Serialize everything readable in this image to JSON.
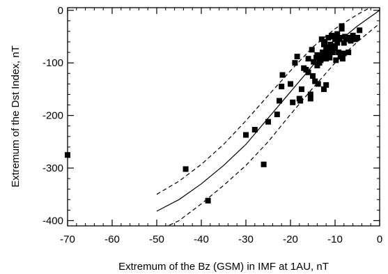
{
  "chart_data": {
    "type": "scatter",
    "xlabel": "Extremum of the Bz (GSM) in IMF at 1AU, nT",
    "ylabel": "Extremum of the Dst Index, nT",
    "xlim": [
      -70,
      0
    ],
    "ylim": [
      -410,
      5
    ],
    "x_ticks": [
      -70,
      -60,
      -50,
      -40,
      -30,
      -20,
      -10,
      0
    ],
    "y_ticks": [
      0,
      -100,
      -200,
      -300,
      -400
    ],
    "x_tick_labels": [
      "-70",
      "-60",
      "-50",
      "-40",
      "-30",
      "-20",
      "-10",
      "0"
    ],
    "y_tick_labels": [
      "0",
      "-100",
      "-200",
      "-300",
      "-400"
    ],
    "grid": false,
    "legend": "none",
    "points": {
      "x": [
        -70,
        -43.5,
        -38.5,
        -30,
        -28,
        -26,
        -25,
        -23,
        -22.5,
        -22,
        -21.8,
        -20,
        -19.5,
        -19,
        -18.5,
        -18,
        -17.8,
        -17.5,
        -17,
        -16.5,
        -16,
        -16,
        -15.5,
        -15.2,
        -15,
        -14.8,
        -14.5,
        -14.2,
        -14,
        -14,
        -13.5,
        -13.2,
        -13,
        -13,
        -12.8,
        -12.5,
        -12.5,
        -12.3,
        -12,
        -12,
        -11.8,
        -11.5,
        -11.5,
        -11.2,
        -11,
        -11,
        -10.8,
        -10.5,
        -10.5,
        -10.2,
        -10,
        -10,
        -9.8,
        -9.5,
        -9.5,
        -9.2,
        -9,
        -9,
        -8.8,
        -8.5,
        -8.5,
        -8.3,
        -8,
        -8,
        -7.8,
        -7.5,
        -7,
        -6.8,
        -6.5,
        -6,
        -5.5,
        -5,
        -4.5,
        -12.5,
        -13.8,
        -12,
        -15.5
      ],
      "y": [
        -275,
        -302,
        -362,
        -237,
        -227,
        -293,
        -212,
        -198,
        -172,
        -145,
        -123,
        -140,
        -175,
        -100,
        -88,
        -168,
        -172,
        -150,
        -110,
        -113,
        -118,
        -92,
        -168,
        -75,
        -125,
        -98,
        -135,
        -90,
        -105,
        -85,
        -100,
        -95,
        -88,
        -55,
        -80,
        -65,
        -82,
        -60,
        -92,
        -75,
        -70,
        -52,
        -85,
        -90,
        -65,
        -75,
        -48,
        -50,
        -80,
        -68,
        -55,
        -72,
        -95,
        -45,
        -62,
        -80,
        -52,
        -55,
        -88,
        -35,
        -30,
        -92,
        -62,
        -82,
        -50,
        -55,
        -80,
        -52,
        -58,
        -48,
        -55,
        -52,
        -38,
        -150,
        -140,
        -142,
        -160
      ]
    },
    "fit_curve": {
      "style": "solid",
      "x": [
        -50,
        -45,
        -40,
        -35,
        -30,
        -25,
        -20,
        -15,
        -10,
        -5,
        0
      ],
      "y": [
        -382,
        -360,
        -330,
        -295,
        -255,
        -205,
        -155,
        -105,
        -65,
        -30,
        0
      ]
    },
    "upper_bound": {
      "style": "dashed",
      "x": [
        -50,
        -45,
        -40,
        -35,
        -30,
        -25,
        -20,
        -15,
        -10,
        -5,
        0
      ],
      "y": [
        -350,
        -325,
        -293,
        -255,
        -210,
        -162,
        -115,
        -70,
        -35,
        -8,
        15
      ]
    },
    "lower_bound": {
      "style": "dashed",
      "x": [
        -50,
        -45,
        -40,
        -35,
        -30,
        -25,
        -20,
        -15,
        -10,
        -5,
        0
      ],
      "y": [
        -420,
        -400,
        -368,
        -333,
        -295,
        -250,
        -198,
        -148,
        -100,
        -60,
        -25
      ]
    },
    "colors": {
      "marks": "#000000",
      "background": "#ffffff"
    }
  }
}
